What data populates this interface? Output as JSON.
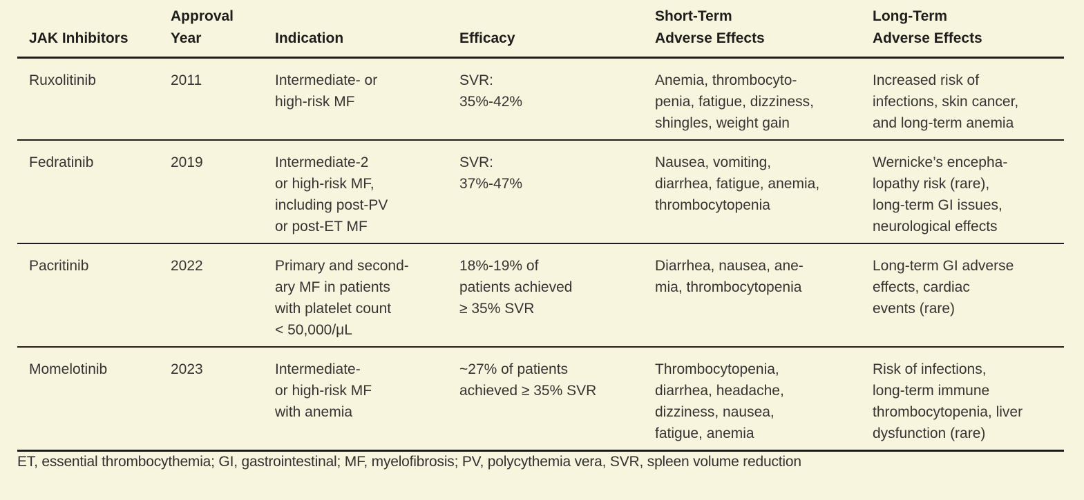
{
  "page": {
    "background_color": "#f7f5dd",
    "rule_color": "#1d1c1a",
    "text_color": "#363432"
  },
  "table": {
    "columns": [
      {
        "id": "drug",
        "label": "JAK Inhibitors"
      },
      {
        "id": "year",
        "label": "Approval\nYear"
      },
      {
        "id": "indication",
        "label": "Indication"
      },
      {
        "id": "efficacy",
        "label": "Efficacy"
      },
      {
        "id": "short_term",
        "label": "Short-Term\nAdverse Effects"
      },
      {
        "id": "long_term",
        "label": "Long-Term\nAdverse Effects"
      }
    ],
    "rows": [
      {
        "drug": "Ruxolitinib",
        "year": "2011",
        "indication": "Intermediate- or\nhigh-risk MF",
        "efficacy": "SVR:\n35%-42%",
        "short_term": "Anemia, thrombocyto-\npenia, fatigue, dizziness,\nshingles, weight gain",
        "long_term": "Increased risk of\ninfections, skin cancer,\nand long-term anemia"
      },
      {
        "drug": "Fedratinib",
        "year": "2019",
        "indication": "Intermediate-2\nor high-risk MF,\nincluding post-PV\nor post-ET MF",
        "efficacy": "SVR:\n37%-47%",
        "short_term": "Nausea, vomiting,\ndiarrhea, fatigue, anemia,\nthrombocytopenia",
        "long_term": "Wernicke’s encepha-\nlopathy risk (rare),\nlong-term GI issues,\nneurological effects"
      },
      {
        "drug": "Pacritinib",
        "year": "2022",
        "indication": "Primary and second-\nary MF in patients\nwith platelet count\n< 50,000/μL",
        "efficacy": "18%-19% of\npatients achieved\n≥ 35% SVR",
        "short_term": "Diarrhea, nausea, ane-\nmia, thrombocytopenia",
        "long_term": "Long-term GI adverse\neffects, cardiac\nevents (rare)"
      },
      {
        "drug": "Momelotinib",
        "year": "2023",
        "indication": "Intermediate-\nor high-risk MF\nwith anemia",
        "efficacy": "~27% of patients\nachieved ≥ 35% SVR",
        "short_term": "Thrombocytopenia,\ndiarrhea, headache,\ndizziness, nausea,\nfatigue, anemia",
        "long_term": "Risk of infections,\nlong-term immune\nthrombocytopenia, liver\ndysfunction (rare)"
      }
    ],
    "footnote": "ET, essential thrombocythemia; GI, gastrointestinal; MF, myelofibrosis; PV, polycythemia vera, SVR, spleen volume reduction"
  }
}
